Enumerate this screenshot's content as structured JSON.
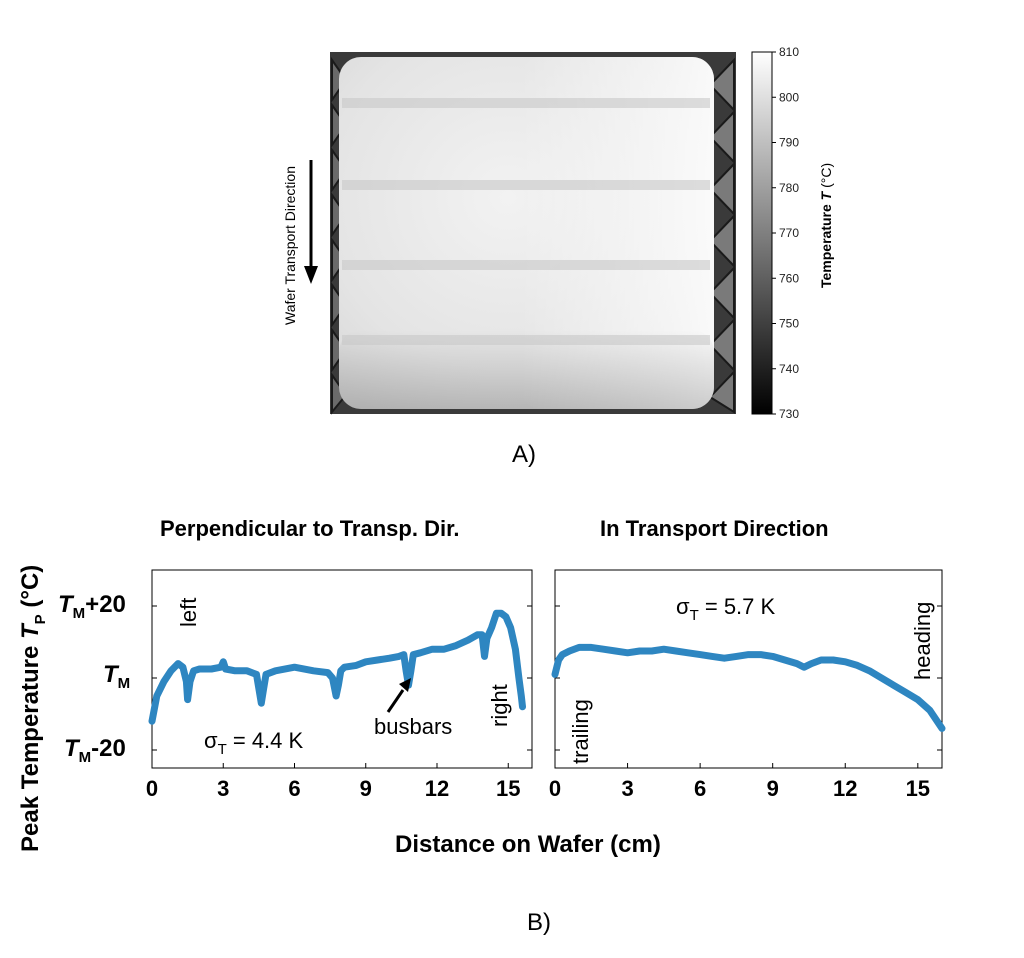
{
  "panel_a": {
    "label": "A)",
    "side_label": "Wafer Transport Direction",
    "colorbar": {
      "title_prefix": "Temperature",
      "title_var": "T",
      "title_unit": "(°C)",
      "ticks": [
        "810",
        "800",
        "790",
        "780",
        "770",
        "760",
        "750",
        "740",
        "730"
      ],
      "min": 730,
      "max": 810
    }
  },
  "panel_b": {
    "label": "B)",
    "ylabel_prefix": "Peak Temperature ",
    "ylabel_var": "T",
    "ylabel_sub": "P",
    "ylabel_unit": " (°C)",
    "xlabel": "Distance on Wafer (cm)",
    "ytick_labels": [
      {
        "base": "T",
        "sub": "M",
        "suffix": "+20"
      },
      {
        "base": "T",
        "sub": "M",
        "suffix": ""
      },
      {
        "base": "T",
        "sub": "M",
        "suffix": "-20"
      }
    ]
  },
  "chart_data": [
    {
      "type": "line",
      "title": "Perpendicular to Transp. Dir.",
      "xlabel": "Distance on Wafer (cm)",
      "ylabel": "Peak Temperature T_P (°C)",
      "xlim": [
        0,
        16
      ],
      "ylim": [
        -25,
        30
      ],
      "xticks": [
        0,
        3,
        6,
        9,
        12,
        15
      ],
      "yticks": [
        -20,
        0,
        20
      ],
      "color": "#2e86c1",
      "annotations": [
        {
          "text": "left",
          "x": 1.5,
          "y": 17,
          "rotation": -90
        },
        {
          "text": "right",
          "x": 14.8,
          "y": -8,
          "rotation": -90
        },
        {
          "text": "busbars",
          "x": 11.7,
          "y": -14,
          "arrow_to": [
            10.8,
            -1
          ]
        },
        {
          "text": "σ_T = 4.4 K",
          "x": 2.2,
          "y": -18
        }
      ],
      "series": [
        {
          "x": [
            0,
            0.2,
            0.5,
            0.8,
            1.1,
            1.3,
            1.45,
            1.5,
            1.6,
            1.75,
            2.0,
            2.5,
            2.9,
            3.0,
            3.1,
            3.5,
            4.0,
            4.4,
            4.5,
            4.6,
            4.7,
            4.8,
            5.2,
            6.0,
            6.8,
            7.4,
            7.6,
            7.75,
            7.85,
            7.95,
            8.1,
            8.6,
            9.0,
            9.5,
            10.0,
            10.4,
            10.6,
            10.7,
            10.8,
            10.9,
            11.0,
            11.3,
            11.8,
            12.3,
            12.8,
            13.3,
            13.7,
            13.9,
            14.0,
            14.1,
            14.3,
            14.5,
            14.7,
            14.9,
            15.1,
            15.3,
            15.45,
            15.55,
            15.6
          ],
          "y": [
            -12,
            -5,
            -1,
            2,
            4,
            3,
            -1,
            -6,
            -1,
            2,
            2.5,
            2.5,
            3,
            4.5,
            2.5,
            2,
            2,
            1,
            -3,
            -7,
            -3,
            1,
            2,
            3,
            2,
            1.5,
            0,
            -5,
            -2,
            2,
            3,
            3.5,
            4.5,
            5,
            5.5,
            6,
            6.5,
            2,
            -2,
            2,
            6.5,
            7,
            8,
            8,
            9,
            10.5,
            12,
            12,
            6,
            11,
            14,
            18,
            18,
            17,
            14,
            8,
            0,
            -5,
            -8
          ]
        }
      ]
    },
    {
      "type": "line",
      "title": "In Transport Direction",
      "xlabel": "Distance on Wafer (cm)",
      "ylim": [
        -25,
        30
      ],
      "xlim": [
        0,
        16
      ],
      "xticks": [
        0,
        3,
        6,
        9,
        12,
        15
      ],
      "color": "#2e86c1",
      "annotations": [
        {
          "text": "trailing",
          "x": 0.6,
          "y": -12,
          "rotation": -90
        },
        {
          "text": "heading",
          "x": 15.0,
          "y": 17,
          "rotation": -90
        },
        {
          "text": "σ_T = 5.7 K",
          "x": 5.8,
          "y": 19
        }
      ],
      "series": [
        {
          "x": [
            0,
            0.15,
            0.3,
            0.6,
            1.0,
            1.5,
            2.0,
            2.5,
            3.0,
            3.5,
            4.0,
            4.5,
            5.0,
            5.5,
            6.0,
            6.5,
            7.0,
            7.5,
            8.0,
            8.5,
            9.0,
            9.5,
            10.0,
            10.3,
            10.6,
            11.0,
            11.5,
            12.0,
            12.5,
            13.0,
            13.5,
            14.0,
            14.5,
            15.0,
            15.5,
            16.0
          ],
          "y": [
            1,
            5,
            6.5,
            7.5,
            8.5,
            8.5,
            8,
            7.5,
            7,
            7.5,
            7.5,
            8,
            7.5,
            7,
            6.5,
            6,
            5.5,
            6,
            6.5,
            6.5,
            6,
            5,
            4,
            3,
            4,
            5,
            5,
            4.5,
            3.5,
            2,
            0,
            -2,
            -4,
            -6,
            -9,
            -14
          ]
        }
      ]
    }
  ]
}
